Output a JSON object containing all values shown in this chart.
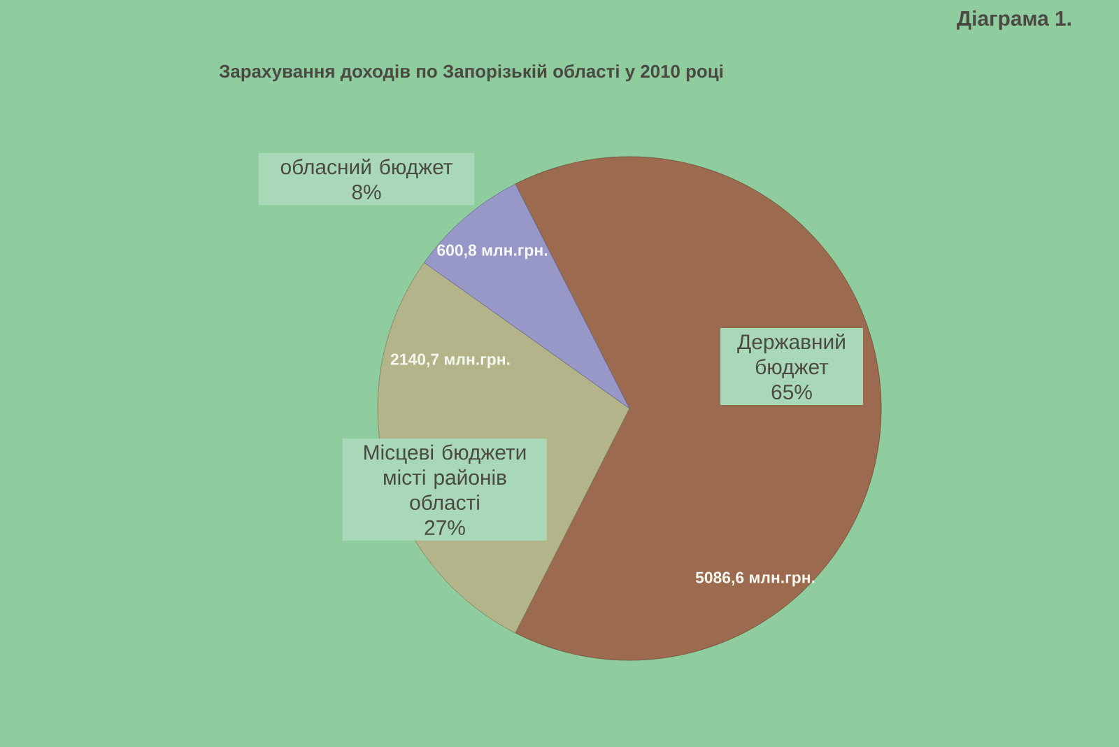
{
  "chart_data": {
    "type": "pie",
    "title": "Зарахування доходів по Запорізькій області у 2010 році",
    "categories": [
      "Державний бюджет",
      "Місцеві бюджети місті районів області",
      "обласний бюджет"
    ],
    "values": [
      5086.6,
      2140.7,
      600.8
    ],
    "value_labels": [
      "5086,6 млн.грн.",
      "2140,7 млн.грн.",
      "600,8 млн.грн."
    ],
    "colors": [
      "#9c6a4e",
      "#b4b48a",
      "#9898c8"
    ],
    "annotations": [
      "Діаграма 1.",
      "65%",
      "27%",
      "8%"
    ]
  }
}
